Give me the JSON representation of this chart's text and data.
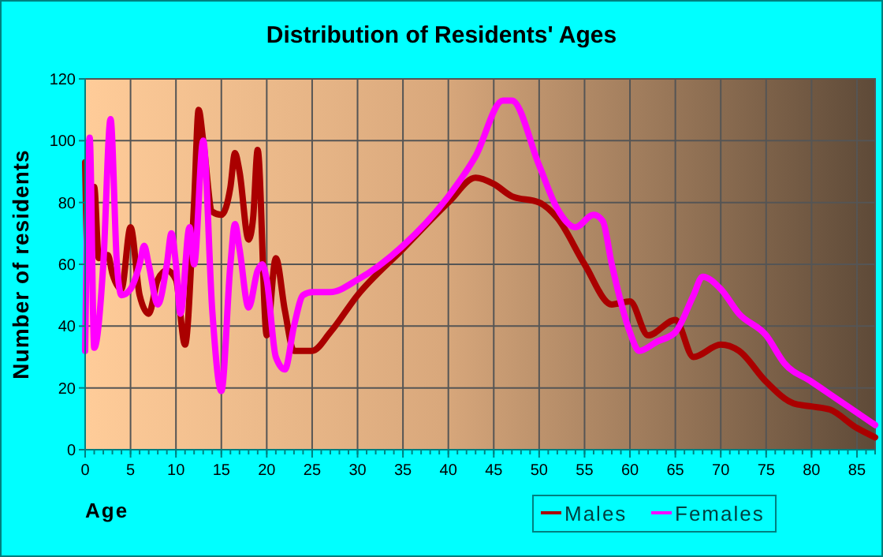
{
  "chart_data": {
    "type": "line",
    "title": "Distribution of Residents' Ages",
    "xlabel": "Age",
    "ylabel": "Number of residents",
    "xlim": [
      0,
      87
    ],
    "xticks": [
      0,
      5,
      10,
      15,
      20,
      25,
      30,
      35,
      40,
      45,
      50,
      55,
      60,
      65,
      70,
      75,
      80,
      85
    ],
    "ylim": [
      0,
      120
    ],
    "yticks": [
      0,
      20,
      40,
      60,
      80,
      100,
      120
    ],
    "grid": true,
    "legend": "bottom",
    "series": [
      {
        "name": "Males",
        "color": "#aa0000",
        "x": [
          0,
          0.3,
          1,
          1.5,
          2.5,
          3,
          4,
          5,
          6,
          7,
          8,
          9,
          10,
          11,
          12,
          12.5,
          13,
          14,
          15,
          16,
          16.5,
          17,
          18,
          18.5,
          19,
          20,
          21,
          22,
          23,
          25,
          27,
          30,
          35,
          40,
          43,
          45,
          47,
          50,
          52,
          55,
          58,
          60,
          62,
          65,
          67,
          70,
          72,
          75,
          78,
          80,
          82,
          85,
          87
        ],
        "values": [
          93,
          60,
          85,
          62,
          63,
          57,
          52,
          72,
          50,
          44,
          55,
          58,
          55,
          34,
          80,
          110,
          100,
          77,
          76,
          85,
          96,
          90,
          68,
          75,
          97,
          37,
          62,
          45,
          32,
          32,
          38,
          50,
          65,
          80,
          88,
          86,
          82,
          80,
          75,
          60,
          47,
          48,
          37,
          42,
          30,
          34,
          32,
          22,
          15,
          14,
          13,
          7,
          4
        ]
      },
      {
        "name": "Females",
        "color": "#ff00ff",
        "x": [
          0,
          0.5,
          1,
          2,
          2.8,
          3.5,
          4,
          5,
          6,
          6.5,
          7,
          8,
          9,
          9.5,
          10,
          10.5,
          11.5,
          12,
          13,
          14,
          15,
          16,
          16.5,
          17,
          18,
          19,
          19.5,
          20,
          21,
          22,
          23,
          24,
          25,
          27,
          30,
          35,
          40,
          43,
          46,
          47,
          50,
          52,
          54,
          56,
          57,
          58,
          60,
          61,
          63,
          65,
          67,
          68,
          70,
          72,
          75,
          77,
          80,
          82,
          85,
          87
        ],
        "values": [
          32,
          101,
          33,
          60,
          107,
          60,
          50,
          52,
          60,
          66,
          60,
          47,
          60,
          70,
          60,
          44,
          72,
          60,
          100,
          45,
          19,
          60,
          73,
          65,
          46,
          58,
          60,
          55,
          30,
          26,
          40,
          50,
          51,
          51,
          55,
          66,
          82,
          95,
          113,
          113,
          92,
          78,
          72,
          76,
          74,
          60,
          38,
          32,
          35,
          38,
          50,
          56,
          52,
          44,
          37,
          28,
          22,
          18,
          12,
          8
        ]
      }
    ]
  }
}
